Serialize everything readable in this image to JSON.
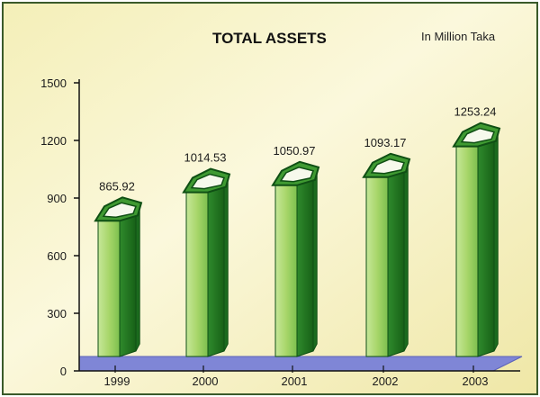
{
  "chart_data": {
    "type": "bar",
    "title": "TOTAL ASSETS",
    "unit_note": "In Million Taka",
    "categories": [
      "1999",
      "2000",
      "2001",
      "2002",
      "2003"
    ],
    "values": [
      865.92,
      1014.53,
      1050.97,
      1093.17,
      1253.24
    ],
    "value_labels": [
      "865.92",
      "1014.53",
      "1050.97",
      "1093.17",
      "1253.24"
    ],
    "ylim": [
      0,
      1500
    ],
    "yticks": [
      "0",
      "300",
      "600",
      "900",
      "1200",
      "1500"
    ],
    "ytick_values": [
      0,
      300,
      600,
      900,
      1200,
      1500
    ],
    "grid": false,
    "legend": "none",
    "style": "3d-column"
  },
  "colors": {
    "bar_light": "#a8d66a",
    "bar_mid": "#3f9a32",
    "bar_dark": "#1b6b1e",
    "bar_edge": "#0f4f14",
    "floor": "#7f86d6",
    "background": "#f7f2c4",
    "frame": "#3a5a2a"
  }
}
